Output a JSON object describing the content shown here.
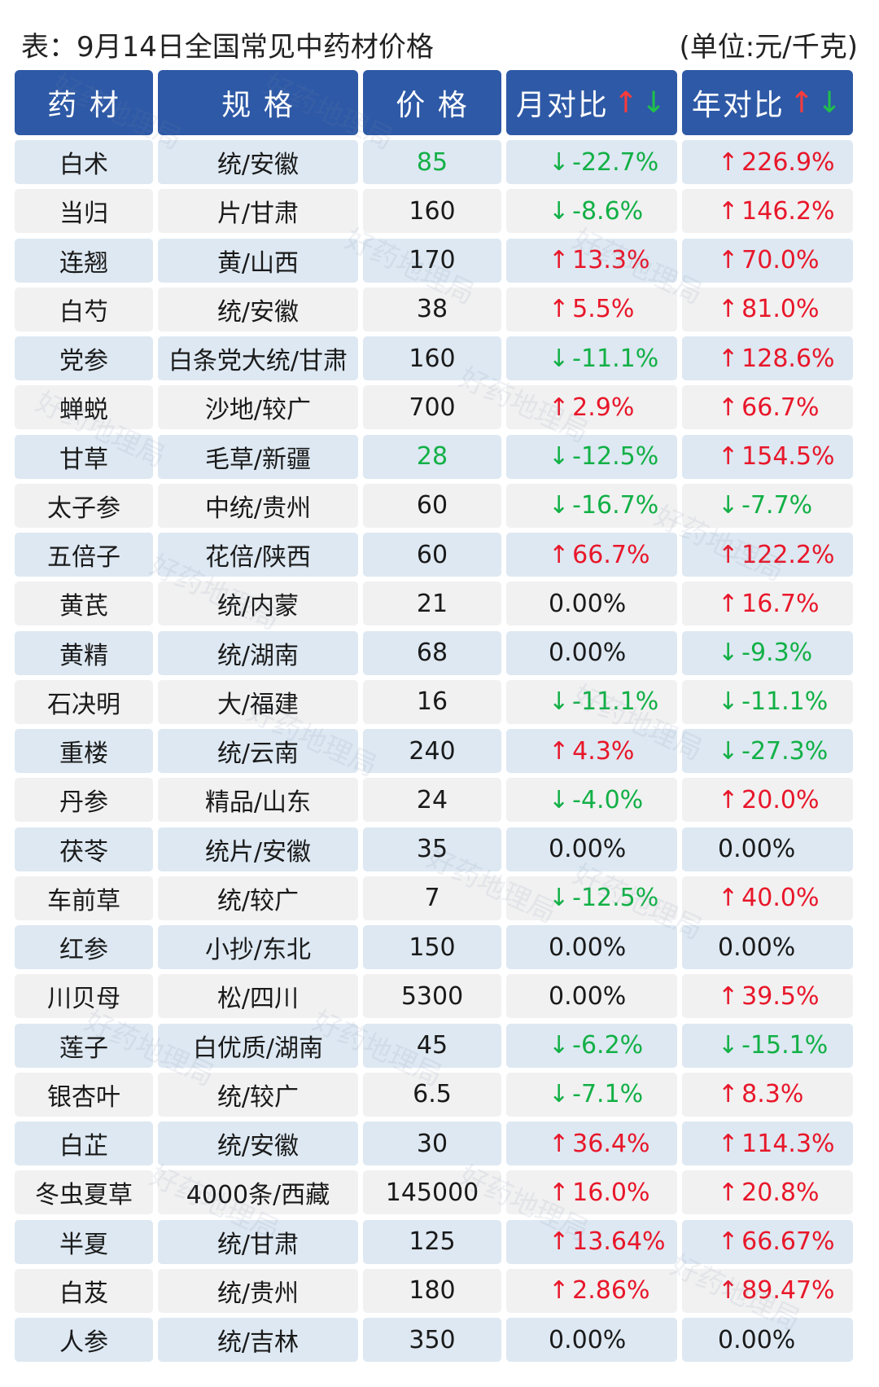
{
  "title": "表：9月14日全国常见中药材价格",
  "unit": "(单位:元/千克)",
  "headers": {
    "name": "药 材",
    "spec": "规 格",
    "price": "价 格",
    "month": "月对比",
    "year": "年对比",
    "sort_up": "↑",
    "sort_down": "↓"
  },
  "colors": {
    "header_bg": "#2e59a6",
    "row_blue": "#dde8f2",
    "row_gray": "#f1f1f1",
    "up_red": "#e8172a",
    "down_green": "#12b046"
  },
  "watermark": "好药地理局",
  "rows": [
    {
      "name": "白术",
      "spec": "统/安徽",
      "price": "85",
      "price_green": true,
      "month": "-22.7%",
      "month_dir": "down",
      "year": "226.9%",
      "year_dir": "up"
    },
    {
      "name": "当归",
      "spec": "片/甘肃",
      "price": "160",
      "month": "-8.6%",
      "month_dir": "down",
      "year": "146.2%",
      "year_dir": "up"
    },
    {
      "name": "连翘",
      "spec": "黄/山西",
      "price": "170",
      "month": "13.3%",
      "month_dir": "up",
      "year": "70.0%",
      "year_dir": "up"
    },
    {
      "name": "白芍",
      "spec": "统/安徽",
      "price": "38",
      "month": "5.5%",
      "month_dir": "up",
      "year": "81.0%",
      "year_dir": "up"
    },
    {
      "name": "党参",
      "spec": "白条党大统/甘肃",
      "price": "160",
      "month": "-11.1%",
      "month_dir": "down",
      "year": "128.6%",
      "year_dir": "up"
    },
    {
      "name": "蝉蜕",
      "spec": "沙地/较广",
      "price": "700",
      "month": "2.9%",
      "month_dir": "up",
      "year": "66.7%",
      "year_dir": "up"
    },
    {
      "name": "甘草",
      "spec": "毛草/新疆",
      "price": "28",
      "price_green": true,
      "month": "-12.5%",
      "month_dir": "down",
      "year": "154.5%",
      "year_dir": "up"
    },
    {
      "name": "太子参",
      "spec": "中统/贵州",
      "price": "60",
      "month": "-16.7%",
      "month_dir": "down",
      "year": "-7.7%",
      "year_dir": "down"
    },
    {
      "name": "五倍子",
      "spec": "花倍/陕西",
      "price": "60",
      "month": "66.7%",
      "month_dir": "up",
      "year": "122.2%",
      "year_dir": "up"
    },
    {
      "name": "黄芪",
      "spec": "统/内蒙",
      "price": "21",
      "month": "0.00%",
      "month_dir": "none",
      "year": "16.7%",
      "year_dir": "up"
    },
    {
      "name": "黄精",
      "spec": "统/湖南",
      "price": "68",
      "month": "0.00%",
      "month_dir": "none",
      "year": "-9.3%",
      "year_dir": "down"
    },
    {
      "name": "石决明",
      "spec": "大/福建",
      "price": "16",
      "month": "-11.1%",
      "month_dir": "down",
      "year": "-11.1%",
      "year_dir": "down"
    },
    {
      "name": "重楼",
      "spec": "统/云南",
      "price": "240",
      "month": "4.3%",
      "month_dir": "up",
      "year": "-27.3%",
      "year_dir": "down"
    },
    {
      "name": "丹参",
      "spec": "精品/山东",
      "price": "24",
      "month": "-4.0%",
      "month_dir": "down",
      "year": "20.0%",
      "year_dir": "up"
    },
    {
      "name": "茯苓",
      "spec": "统片/安徽",
      "price": "35",
      "month": "0.00%",
      "month_dir": "none",
      "year": "0.00%",
      "year_dir": "none"
    },
    {
      "name": "车前草",
      "spec": "统/较广",
      "price": "7",
      "month": "-12.5%",
      "month_dir": "down",
      "year": "40.0%",
      "year_dir": "up"
    },
    {
      "name": "红参",
      "spec": "小抄/东北",
      "price": "150",
      "month": "0.00%",
      "month_dir": "none",
      "year": "0.00%",
      "year_dir": "none"
    },
    {
      "name": "川贝母",
      "spec": "松/四川",
      "price": "5300",
      "month": "0.00%",
      "month_dir": "none",
      "year": "39.5%",
      "year_dir": "up"
    },
    {
      "name": "莲子",
      "spec": "白优质/湖南",
      "price": "45",
      "month": "-6.2%",
      "month_dir": "down",
      "year": "-15.1%",
      "year_dir": "down"
    },
    {
      "name": "银杏叶",
      "spec": "统/较广",
      "price": "6.5",
      "month": "-7.1%",
      "month_dir": "down",
      "year": "8.3%",
      "year_dir": "up"
    },
    {
      "name": "白芷",
      "spec": "统/安徽",
      "price": "30",
      "month": "36.4%",
      "month_dir": "up",
      "year": "114.3%",
      "year_dir": "up"
    },
    {
      "name": "冬虫夏草",
      "spec": "4000条/西藏",
      "price": "145000",
      "month": "16.0%",
      "month_dir": "up",
      "year": "20.8%",
      "year_dir": "up"
    },
    {
      "name": "半夏",
      "spec": "统/甘肃",
      "price": "125",
      "month": "13.64%",
      "month_dir": "up",
      "year": "66.67%",
      "year_dir": "up"
    },
    {
      "name": "白芨",
      "spec": "统/贵州",
      "price": "180",
      "month": "2.86%",
      "month_dir": "up",
      "year": "89.47%",
      "year_dir": "up"
    },
    {
      "name": "人参",
      "spec": "统/吉林",
      "price": "350",
      "month": "0.00%",
      "month_dir": "none",
      "year": "0.00%",
      "year_dir": "none"
    }
  ]
}
